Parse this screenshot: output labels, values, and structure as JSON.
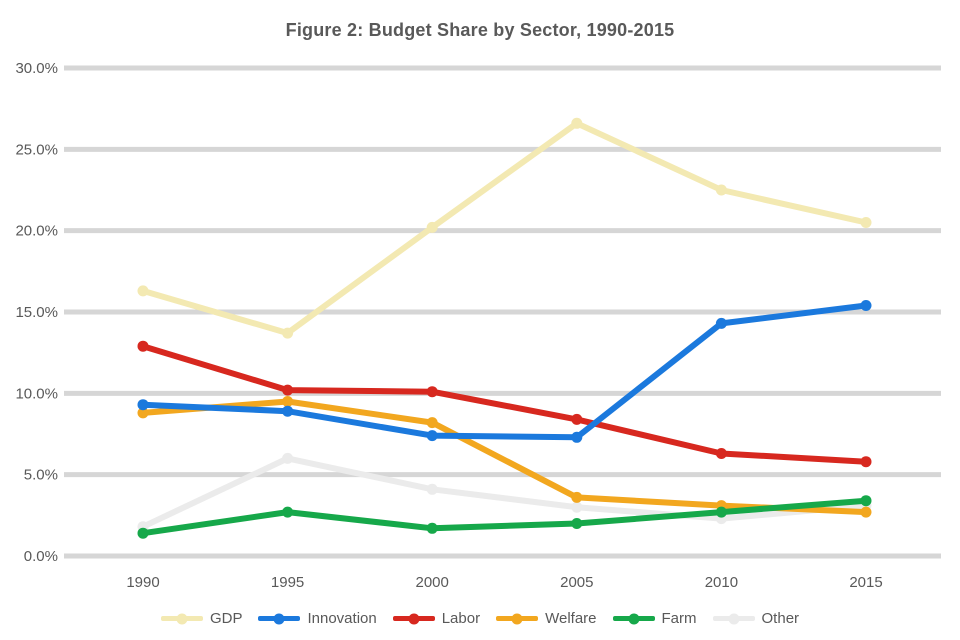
{
  "chart_data": {
    "type": "line",
    "title": "Figure 2: Budget Share by Sector, 1990-2015",
    "categories": [
      "1990",
      "1995",
      "2000",
      "2005",
      "2010",
      "2015"
    ],
    "series": [
      {
        "name": "GDP",
        "color": "#f3e9b2",
        "values": [
          16.3,
          13.7,
          20.2,
          26.6,
          22.5,
          20.5
        ]
      },
      {
        "name": "Innovation",
        "color": "#1b79dd",
        "values": [
          9.3,
          8.9,
          7.4,
          7.3,
          14.3,
          15.4
        ]
      },
      {
        "name": "Labor",
        "color": "#d7281f",
        "values": [
          12.9,
          10.2,
          10.1,
          8.4,
          6.3,
          5.8
        ]
      },
      {
        "name": "Welfare",
        "color": "#f2a71f",
        "values": [
          8.8,
          9.5,
          8.2,
          3.6,
          3.1,
          2.7
        ]
      },
      {
        "name": "Farm",
        "color": "#16a84a",
        "values": [
          1.4,
          2.7,
          1.7,
          2.0,
          2.7,
          3.4
        ]
      },
      {
        "name": "Other",
        "color": "#ebebeb",
        "values": [
          1.8,
          6.0,
          4.1,
          3.0,
          2.3,
          3.1
        ]
      }
    ],
    "y_axis": {
      "ticks": [
        {
          "label": "30.0%",
          "value": 30
        },
        {
          "label": "25.0%",
          "value": 25
        },
        {
          "label": "20.0%",
          "value": 20
        },
        {
          "label": "15.0%",
          "value": 15
        },
        {
          "label": "10.0%",
          "value": 10
        },
        {
          "label": "5.0%",
          "value": 5
        },
        {
          "label": "0.0%",
          "value": 0
        }
      ],
      "ylim": [
        0,
        30
      ]
    },
    "grid": "horizontal",
    "legend_position": "bottom",
    "xlabel": "",
    "ylabel": ""
  },
  "colors": {
    "grid": "#d6d6d6",
    "axis_text": "#595959",
    "title_text": "#595959",
    "background": "#ffffff"
  }
}
